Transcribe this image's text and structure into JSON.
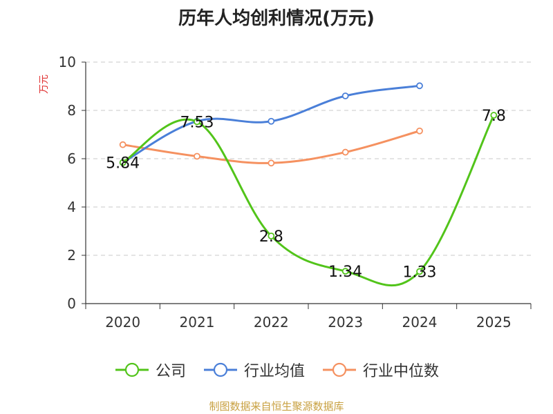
{
  "chart_data": {
    "type": "line",
    "title": "历年人均创利情况(万元)",
    "ylabel": "万元",
    "xlabel": "",
    "categories": [
      "2020",
      "2021",
      "2022",
      "2023",
      "2024",
      "2025"
    ],
    "ylim": [
      0,
      10
    ],
    "yticks": [
      0,
      2,
      4,
      6,
      8,
      10
    ],
    "series": [
      {
        "name": "公司",
        "color": "#52c41a",
        "values": [
          5.84,
          7.53,
          2.8,
          1.34,
          1.33,
          7.8
        ],
        "labels": [
          "5.84",
          "7.53",
          "2.8",
          "1.34",
          "1.33",
          "7.8"
        ]
      },
      {
        "name": "行业均值",
        "color": "#4a7fd8",
        "values": [
          5.84,
          7.55,
          7.55,
          8.6,
          9.02,
          null
        ]
      },
      {
        "name": "行业中位数",
        "color": "#f59160",
        "values": [
          6.58,
          6.1,
          5.82,
          6.27,
          7.15,
          null
        ]
      }
    ],
    "grid": true,
    "legend": "bottom"
  },
  "source": "制图数据来自恒生聚源数据库"
}
